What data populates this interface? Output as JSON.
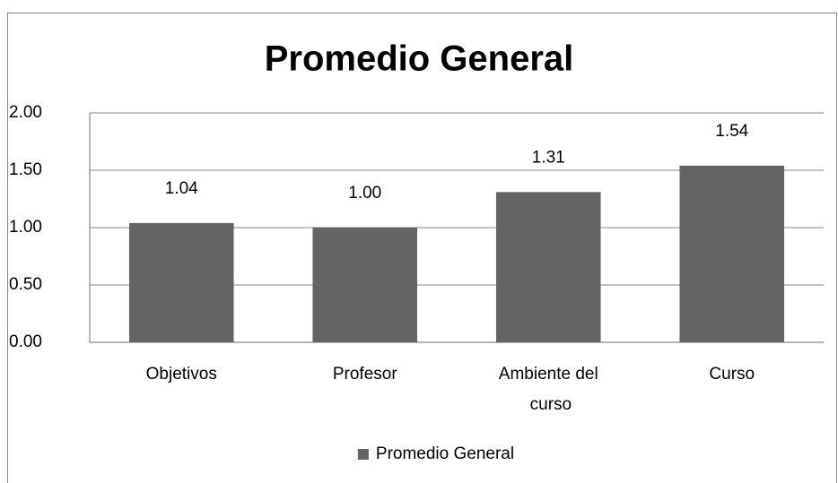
{
  "chart_data": {
    "type": "bar",
    "title": "Promedio General",
    "categories": [
      "Objetivos",
      "Profesor",
      "Ambiente del curso",
      "Curso"
    ],
    "series": [
      {
        "name": "Promedio General",
        "color": "#646464",
        "values": [
          1.04,
          1.0,
          1.31,
          1.54
        ],
        "value_labels": [
          "1.04",
          "1.00",
          "1.31",
          "1.54"
        ]
      }
    ],
    "ylim": [
      0,
      2
    ],
    "yticks": [
      {
        "value": 0,
        "label": "0.00"
      },
      {
        "value": 0.5,
        "label": "0.50"
      },
      {
        "value": 1,
        "label": "1.00"
      },
      {
        "value": 1.5,
        "label": "1.50"
      },
      {
        "value": 2,
        "label": "2.00"
      }
    ],
    "grid": true,
    "legend": "bottom"
  }
}
